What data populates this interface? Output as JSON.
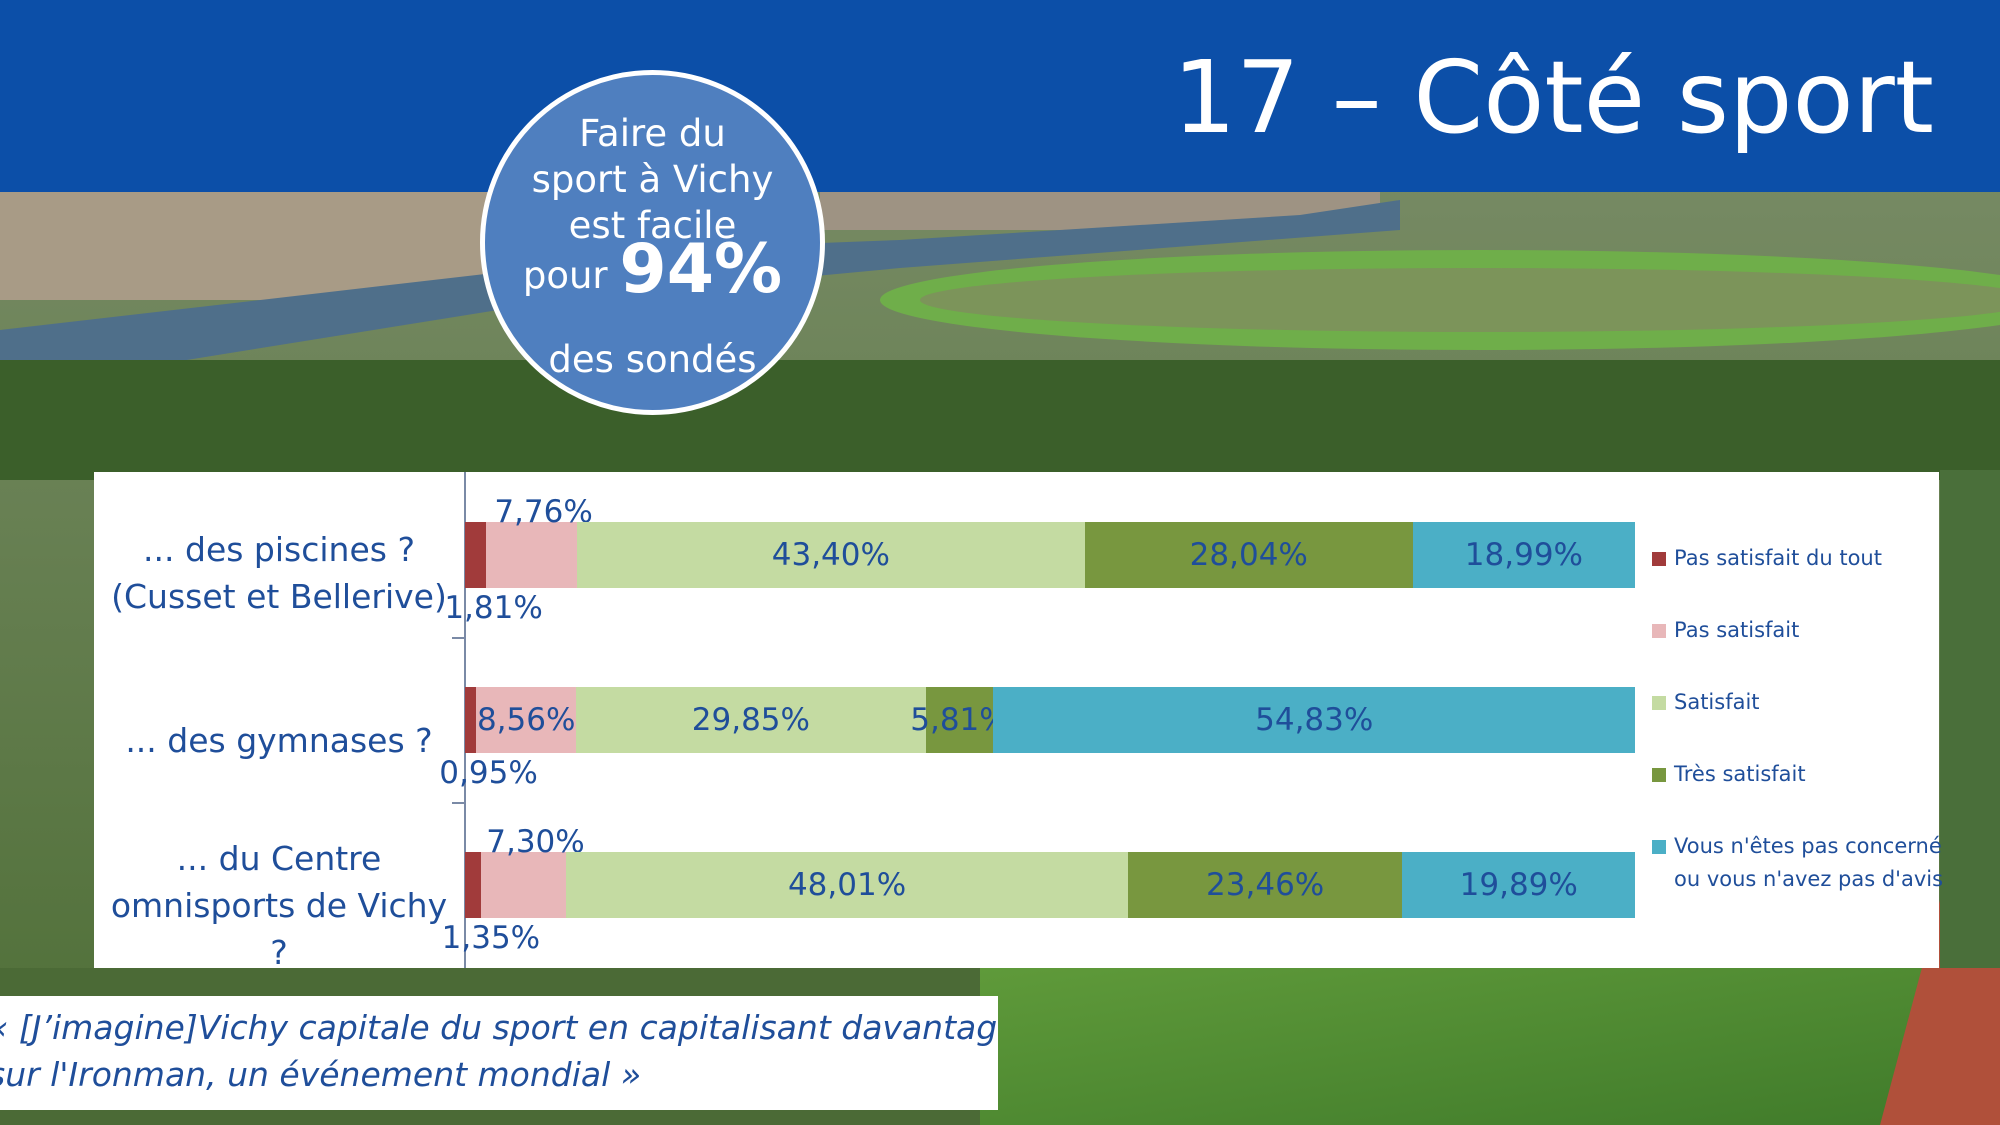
{
  "slide": {
    "title": "17 – Côté sport",
    "colors": {
      "banner": "#0c4fa8",
      "badge": "#4f7fbf",
      "text": "#1f4e9a"
    }
  },
  "badge": {
    "line1": "Faire du",
    "line2": "sport à Vichy",
    "line3": "est facile",
    "line4_prefix": "pour",
    "line4_value": "94%",
    "line5": "des sondés"
  },
  "chart_data": {
    "type": "bar",
    "orientation": "horizontal",
    "stacked": true,
    "percent_scale": true,
    "categories": [
      "... des piscines ? (Cusset et Bellerive)",
      "... des gymnases ?",
      "... du Centre omnisports de Vichy ?"
    ],
    "category_lines": [
      [
        "... des piscines ?",
        "(Cusset et Bellerive)"
      ],
      [
        "... des gymnases ?"
      ],
      [
        "... du Centre",
        "omnisports de Vichy",
        "?"
      ]
    ],
    "series": [
      {
        "name": "Pas satisfait du tout",
        "color": "#a13b3b",
        "values": [
          1.81,
          0.95,
          1.35
        ],
        "labels": [
          "1,81%",
          "0,95%",
          "1,35%"
        ]
      },
      {
        "name": "Pas satisfait",
        "color": "#e8b7b9",
        "values": [
          7.76,
          8.56,
          7.3
        ],
        "labels": [
          "7,76%",
          "8,56%",
          "7,30%"
        ]
      },
      {
        "name": "Satisfait",
        "color": "#c4dba2",
        "values": [
          43.4,
          29.85,
          48.01
        ],
        "labels": [
          "43,40%",
          "29,85%",
          "48,01%"
        ]
      },
      {
        "name": "Très satisfait",
        "color": "#78973f",
        "values": [
          28.04,
          5.81,
          23.46
        ],
        "labels": [
          "28,04%",
          "5,81%",
          "23,46%"
        ]
      },
      {
        "name": "Vous n'êtes pas concerné ou vous n'avez pas d'avis",
        "color": "#4bafc6",
        "values": [
          18.99,
          54.83,
          19.89
        ],
        "labels": [
          "18,99%",
          "54,83%",
          "19,89%"
        ]
      }
    ],
    "legend": {
      "position": "right",
      "items": [
        "Pas satisfait du tout",
        "Pas satisfait",
        "Satisfait",
        "Très satisfait",
        "Vous n'êtes pas concerné ou vous n'avez pas d'avis"
      ]
    },
    "xlim": [
      0,
      100
    ],
    "grid": false
  },
  "quote": {
    "line1": "« [J’imagine]Vichy capitale du sport en capitalisant davantage",
    "line2": "sur l'Ironman, un événement mondial »"
  }
}
